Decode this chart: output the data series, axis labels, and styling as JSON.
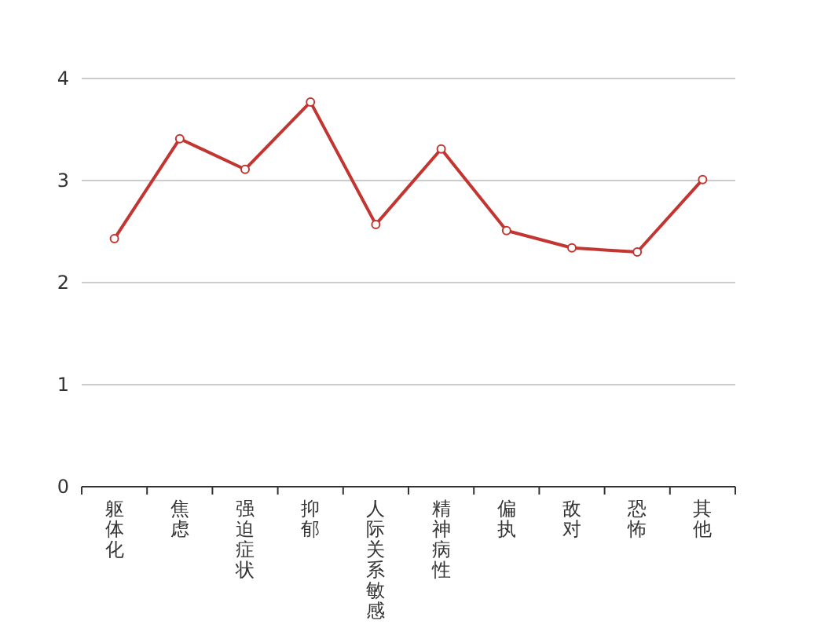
{
  "chart_data": {
    "type": "line",
    "categories": [
      "躯体化",
      "焦虑",
      "强迫症状",
      "抑郁",
      "人际关系敏感",
      "精神病性",
      "偏执",
      "敌对",
      "恐怖",
      "其他"
    ],
    "values": [
      2.43,
      3.41,
      3.11,
      3.77,
      2.57,
      3.31,
      2.51,
      2.34,
      2.3,
      3.01
    ],
    "color": "#c23531",
    "ylim": [
      0,
      4
    ],
    "yticks": [
      0,
      1,
      2,
      3,
      4
    ],
    "grid": "y",
    "marker": "circle"
  }
}
